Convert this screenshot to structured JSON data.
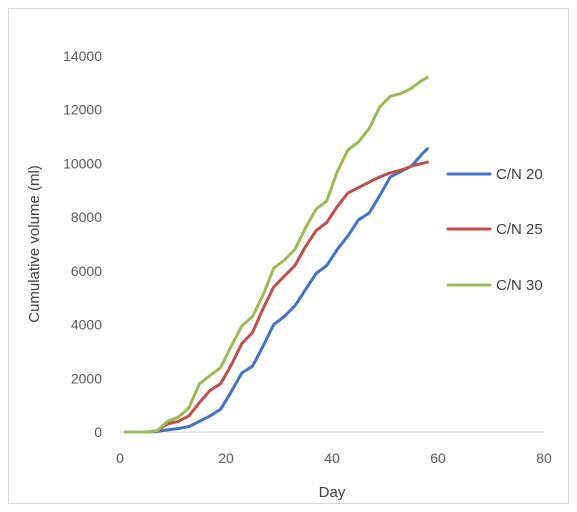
{
  "chart_data": {
    "type": "line",
    "title": "",
    "xlabel": "Day",
    "ylabel": "Cumulative volume (ml)",
    "xlim": [
      0,
      80
    ],
    "ylim": [
      0,
      14000
    ],
    "xticks": [
      "0",
      "20",
      "40",
      "60",
      "80"
    ],
    "yticks": [
      "0",
      "2000",
      "4000",
      "6000",
      "8000",
      "10000",
      "12000",
      "14000"
    ],
    "grid": false,
    "legend_position": "right",
    "series": [
      {
        "name": "C/N 20",
        "color": "#4472C4",
        "x": [
          1,
          3,
          5,
          7,
          9,
          11,
          13,
          15,
          17,
          19,
          21,
          23,
          25,
          27,
          29,
          31,
          33,
          35,
          37,
          39,
          41,
          43,
          45,
          47,
          49,
          51,
          53,
          55,
          57,
          58
        ],
        "y": [
          0,
          0,
          0,
          20,
          80,
          130,
          200,
          400,
          600,
          850,
          1500,
          2200,
          2450,
          3200,
          4000,
          4300,
          4700,
          5300,
          5900,
          6200,
          6800,
          7300,
          7900,
          8150,
          8800,
          9500,
          9700,
          9900,
          10350,
          10550
        ]
      },
      {
        "name": "C/N 25",
        "color": "#C0504D",
        "x": [
          1,
          3,
          5,
          7,
          9,
          11,
          13,
          15,
          17,
          19,
          21,
          23,
          25,
          27,
          29,
          31,
          33,
          35,
          37,
          39,
          41,
          43,
          45,
          47,
          49,
          51,
          53,
          55,
          57,
          58
        ],
        "y": [
          0,
          0,
          0,
          50,
          300,
          400,
          600,
          1100,
          1550,
          1800,
          2500,
          3300,
          3700,
          4600,
          5400,
          5800,
          6200,
          6900,
          7500,
          7800,
          8400,
          8900,
          9100,
          9300,
          9500,
          9650,
          9750,
          9900,
          10000,
          10050
        ]
      },
      {
        "name": "C/N 30",
        "color": "#9BBB59",
        "x": [
          1,
          3,
          5,
          7,
          9,
          11,
          13,
          15,
          17,
          19,
          21,
          23,
          25,
          27,
          29,
          31,
          33,
          35,
          37,
          39,
          41,
          43,
          45,
          47,
          49,
          51,
          53,
          55,
          57,
          58
        ],
        "y": [
          0,
          0,
          0,
          50,
          400,
          550,
          900,
          1800,
          2100,
          2400,
          3200,
          3950,
          4300,
          5100,
          6100,
          6400,
          6800,
          7600,
          8300,
          8600,
          9700,
          10500,
          10800,
          11300,
          12100,
          12500,
          12600,
          12800,
          13100,
          13200
        ]
      }
    ]
  }
}
